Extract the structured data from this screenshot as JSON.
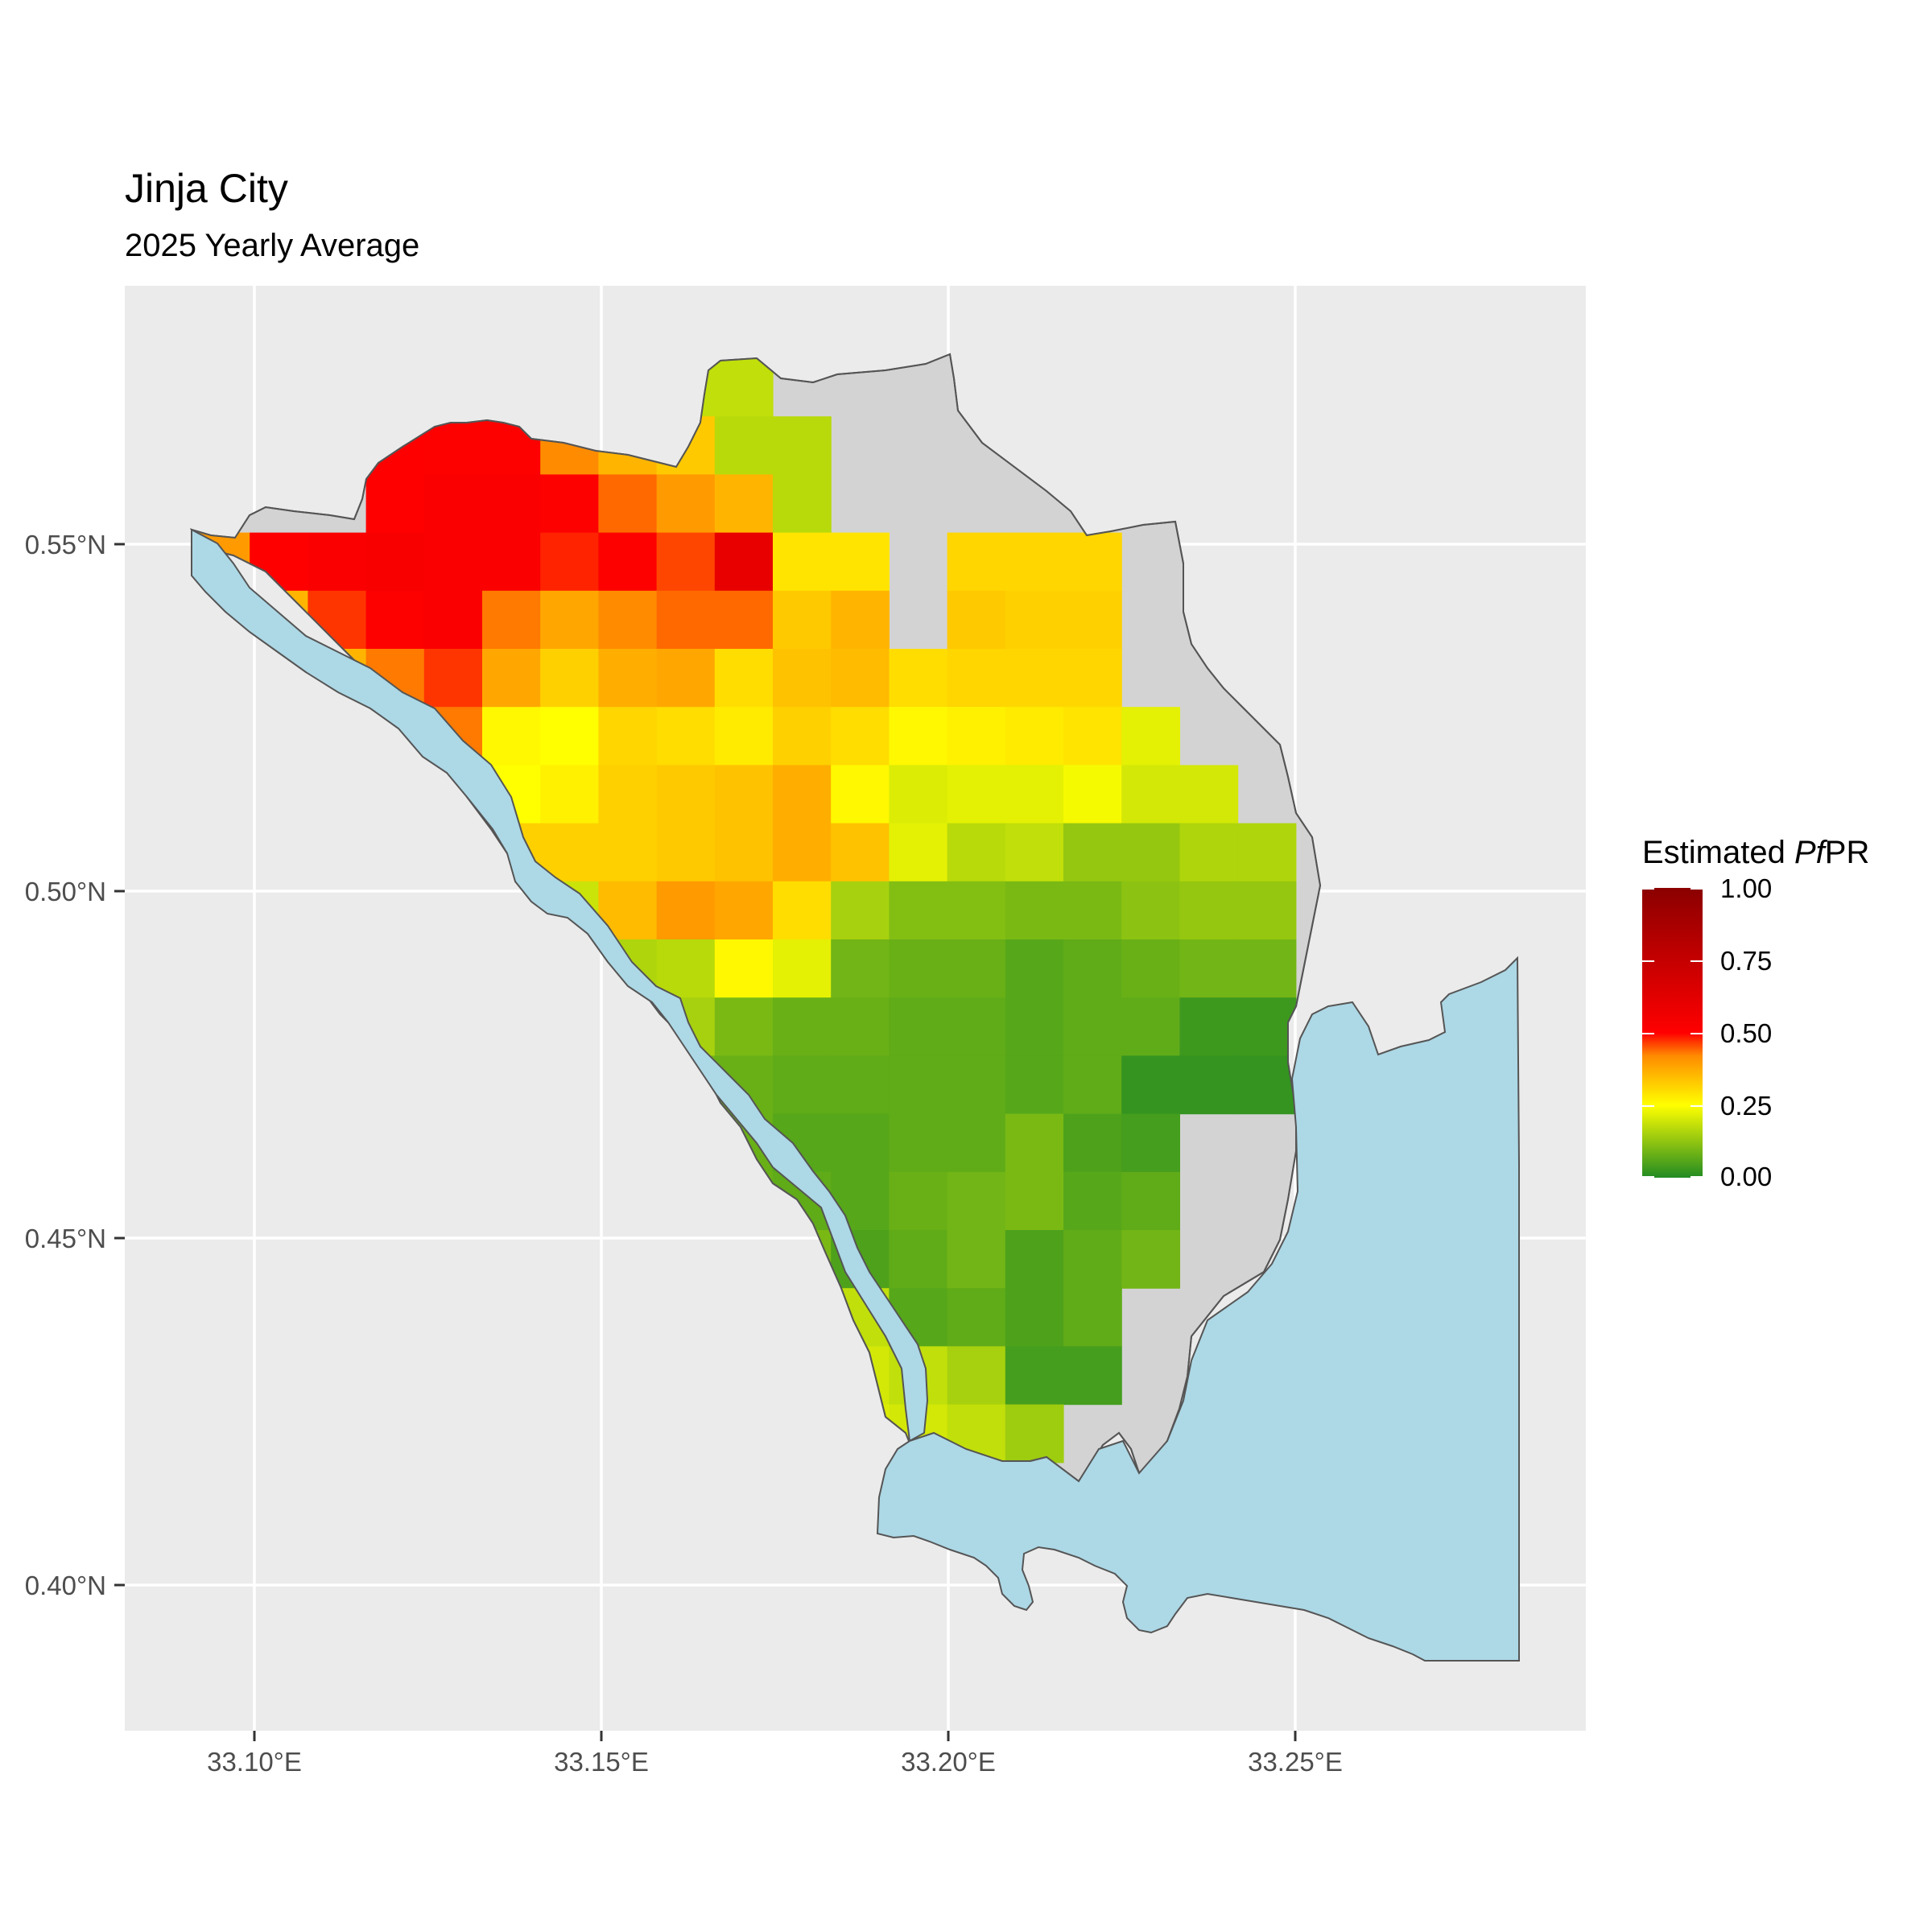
{
  "title": "Jinja City",
  "subtitle": "2025 Yearly Average",
  "legend": {
    "title_prefix": "Estimated ",
    "title_italic": "Pf",
    "title_suffix": "PR",
    "ticks": [
      "1.00",
      "0.75",
      "0.50",
      "0.25",
      "0.00"
    ],
    "colors": [
      "#228B22",
      "#FFFF00",
      "#FF8C00",
      "#FF0000",
      "#8B0000"
    ]
  },
  "axes": {
    "x_ticks": [
      "33.10°E",
      "33.15°E",
      "33.20°E",
      "33.25°E"
    ],
    "y_ticks": [
      "0.55°N",
      "0.50°N",
      "0.45°N",
      "0.40°N"
    ]
  },
  "colors": {
    "panel": "#ebebeb",
    "water": "#add8e6",
    "no_data": "#d3d3d3",
    "outline": "#555555"
  }
}
